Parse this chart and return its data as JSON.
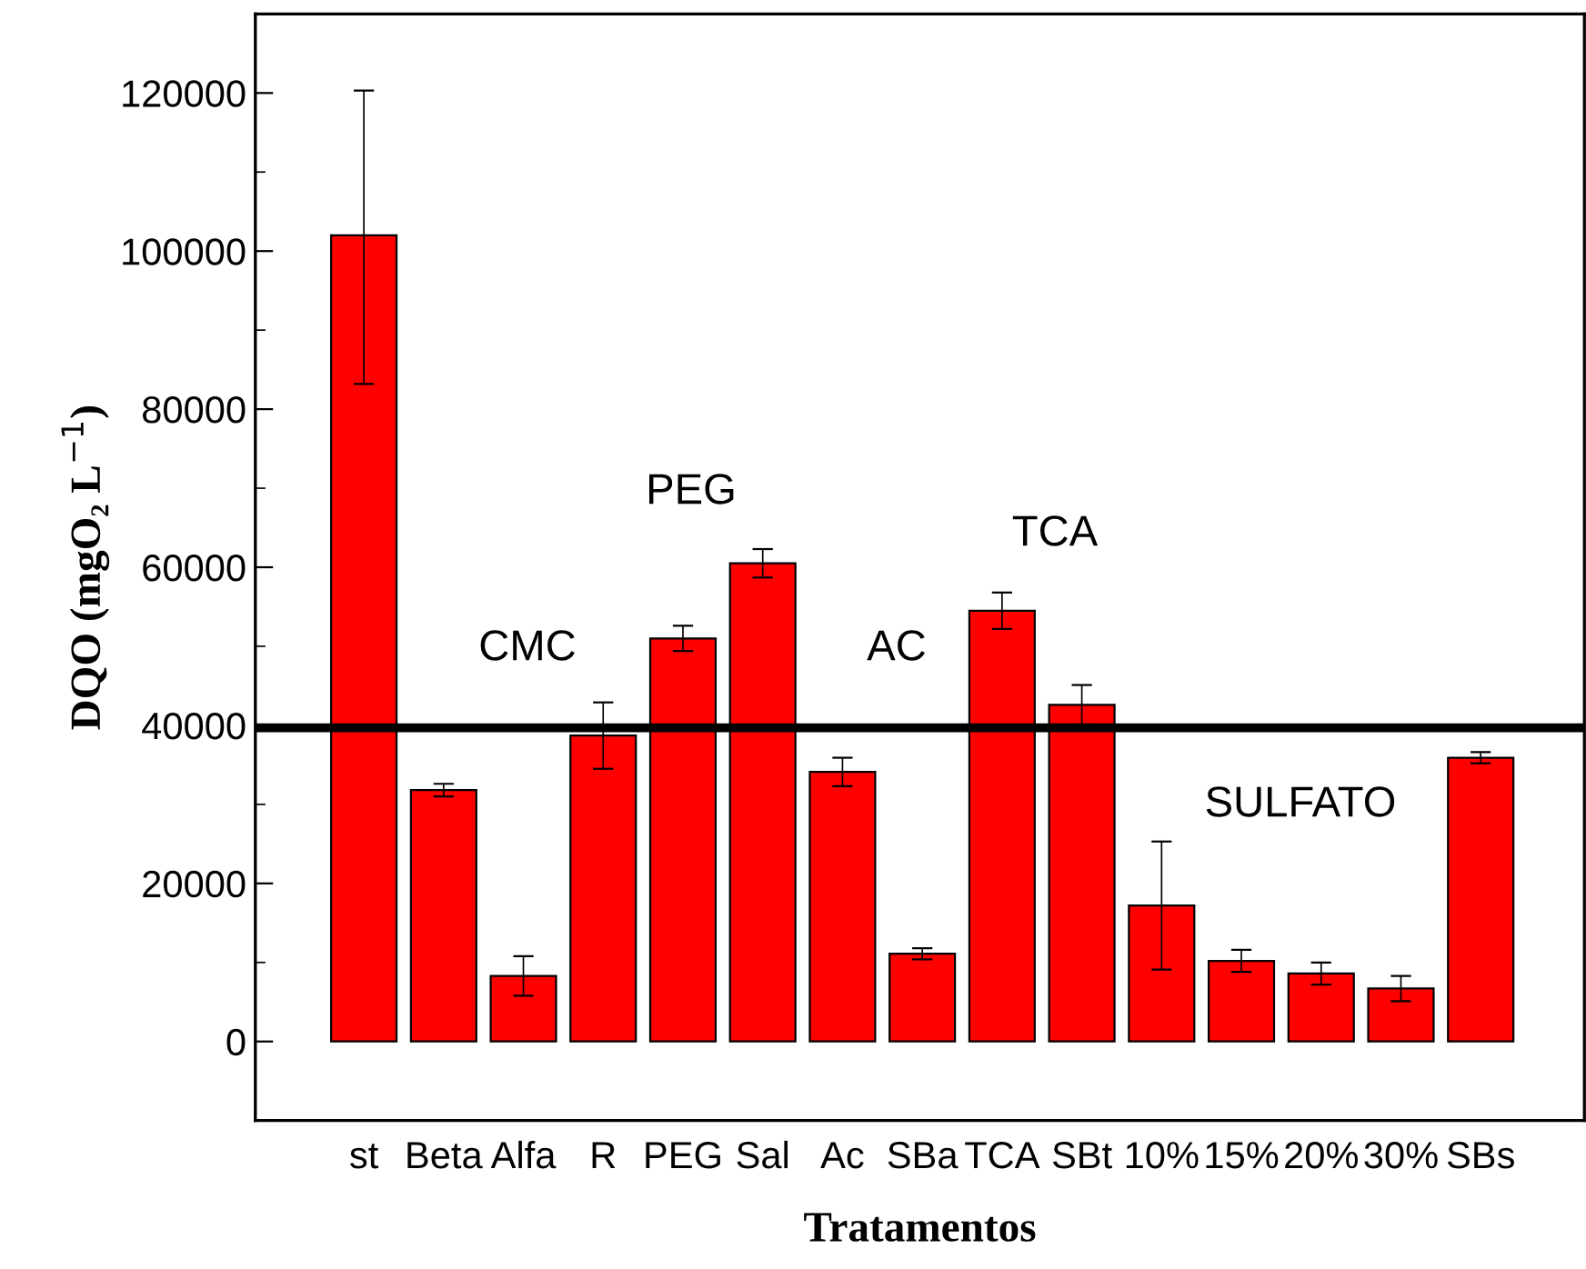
{
  "chart_data": {
    "type": "bar",
    "xlabel": "Tratamentos",
    "ylabel": "DQO (mgO₂ L$^{−1}$)",
    "categories": [
      "st",
      "Beta",
      "Alfa",
      "R",
      "PEG",
      "Sal",
      "Ac",
      "SBa",
      "TCA",
      "SBt",
      "10%",
      "15%",
      "20%",
      "30%",
      "SBs"
    ],
    "values": [
      102000,
      31800,
      8300,
      38700,
      51000,
      60500,
      34100,
      11100,
      54500,
      42600,
      17200,
      10200,
      8600,
      6700,
      35900
    ],
    "errors": [
      [
        83200,
        120300
      ],
      800,
      2500,
      4200,
      1600,
      1800,
      1800,
      700,
      2300,
      2500,
      8100,
      1400,
      1400,
      1600,
      700
    ],
    "color": "#ff0000",
    "ylim": [
      -10000,
      130000
    ],
    "yticks": [
      0,
      20000,
      40000,
      60000,
      80000,
      100000,
      120000
    ],
    "ref_lines": [
      {
        "axis": "y",
        "value": 39700,
        "color": "#000000"
      }
    ],
    "annotations": [
      "CMC",
      "PEG",
      "AC",
      "TCA",
      "SULFATO"
    ],
    "grid": false,
    "legend": false
  }
}
